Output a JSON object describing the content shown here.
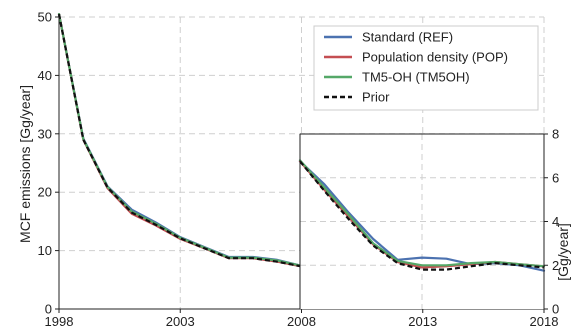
{
  "chart_data": [
    {
      "type": "line",
      "panel": "main",
      "xlim": [
        1998,
        2018
      ],
      "ylim": [
        0,
        50
      ],
      "xticks": [
        "1998",
        "2003",
        "2008",
        "2013",
        "2018"
      ],
      "yticks": [
        "0",
        "10",
        "20",
        "30",
        "40",
        "50"
      ],
      "ylabel": "MCF emissions [Gg/year]",
      "grid": true,
      "legend_position": "top-right",
      "series": [
        {
          "name": "Standard (REF)",
          "color": "#4c72b0",
          "style": "solid",
          "x": [
            1998,
            1999,
            2000,
            2001,
            2002,
            2003,
            2004,
            2005,
            2006,
            2007,
            2008
          ],
          "y": [
            50.5,
            29.2,
            21.0,
            17.0,
            14.8,
            12.3,
            10.6,
            8.9,
            8.9,
            8.4,
            7.4
          ]
        },
        {
          "name": "Population density (POP)",
          "color": "#c44e52",
          "style": "solid",
          "x": [
            1998,
            1999,
            2000,
            2001,
            2002,
            2003,
            2004,
            2005,
            2006,
            2007,
            2008
          ],
          "y": [
            50.5,
            29.0,
            20.7,
            16.3,
            14.3,
            12.0,
            10.4,
            8.7,
            8.7,
            8.1,
            7.3
          ]
        },
        {
          "name": "TM5-OH (TM5OH)",
          "color": "#55a868",
          "style": "solid",
          "x": [
            1998,
            1999,
            2000,
            2001,
            2002,
            2003,
            2004,
            2005,
            2006,
            2007,
            2008
          ],
          "y": [
            50.5,
            29.1,
            20.9,
            16.7,
            14.6,
            12.2,
            10.5,
            8.8,
            8.8,
            8.3,
            7.4
          ]
        },
        {
          "name": "Prior",
          "color": "#111111",
          "style": "dashed",
          "x": [
            1998,
            1999,
            2000,
            2001,
            2002,
            2003,
            2004,
            2005,
            2006,
            2007,
            2008
          ],
          "y": [
            50.5,
            29.0,
            20.8,
            16.5,
            14.4,
            12.1,
            10.4,
            8.7,
            8.7,
            8.1,
            7.3
          ]
        }
      ]
    },
    {
      "type": "line",
      "panel": "inset",
      "xlim": [
        2008,
        2018
      ],
      "ylim": [
        0,
        8
      ],
      "yticks": [
        "0",
        "2",
        "4",
        "6",
        "8"
      ],
      "ylabel": "[Gg/year]",
      "y_axis_side": "right",
      "grid": true,
      "series": [
        {
          "name": "Standard (REF)",
          "color": "#4c72b0",
          "style": "solid",
          "x": [
            2008,
            2009,
            2010,
            2011,
            2012,
            2013,
            2014,
            2015,
            2016,
            2017,
            2018
          ],
          "y": [
            6.75,
            5.7,
            4.4,
            3.2,
            2.25,
            2.35,
            2.3,
            2.05,
            2.1,
            2.0,
            1.75
          ]
        },
        {
          "name": "Population density (POP)",
          "color": "#c44e52",
          "style": "solid",
          "x": [
            2008,
            2009,
            2010,
            2011,
            2012,
            2013,
            2014,
            2015,
            2016,
            2017,
            2018
          ],
          "y": [
            6.75,
            5.45,
            4.2,
            2.95,
            2.15,
            1.9,
            1.95,
            2.05,
            2.15,
            2.05,
            1.95
          ]
        },
        {
          "name": "TM5-OH (TM5OH)",
          "color": "#55a868",
          "style": "solid",
          "x": [
            2008,
            2009,
            2010,
            2011,
            2012,
            2013,
            2014,
            2015,
            2016,
            2017,
            2018
          ],
          "y": [
            6.8,
            5.55,
            4.3,
            3.0,
            2.2,
            2.0,
            2.0,
            2.1,
            2.15,
            2.05,
            1.95
          ]
        },
        {
          "name": "Prior",
          "color": "#111111",
          "style": "dashed",
          "x": [
            2008,
            2009,
            2010,
            2011,
            2012,
            2013,
            2014,
            2015,
            2016,
            2017,
            2018
          ],
          "y": [
            6.75,
            5.4,
            4.1,
            2.9,
            2.1,
            1.8,
            1.8,
            1.95,
            2.1,
            2.0,
            1.9
          ]
        }
      ]
    }
  ]
}
